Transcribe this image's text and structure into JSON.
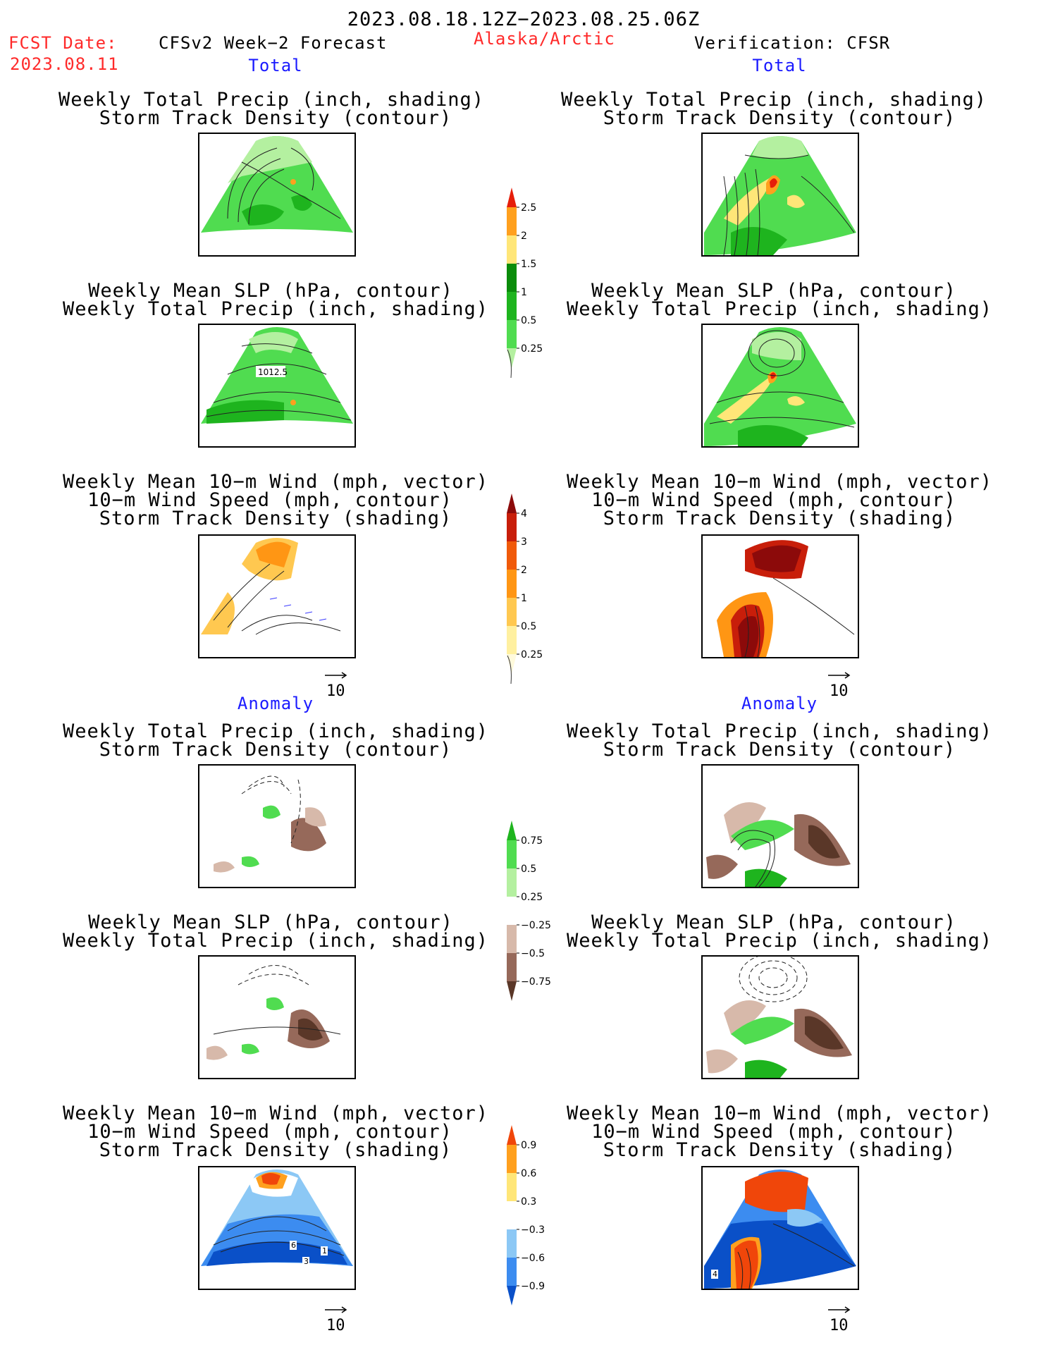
{
  "header": {
    "date_range": "2023.08.18.12Z−2023.08.25.06Z",
    "fcst_label": "FCST Date:",
    "fcst_date": "2023.08.11",
    "model": "CFSv2 Week−2 Forecast",
    "region": "Alaska/Arctic",
    "verification": "Verification: CFSR"
  },
  "sections": {
    "total": "Total",
    "anomaly": "Anomaly"
  },
  "titles": {
    "precip_storm": [
      "Weekly Total Precip (inch, shading)",
      "Storm Track Density (contour)"
    ],
    "slp_precip": [
      "Weekly Mean SLP (hPa, contour)",
      "Weekly Total Precip (inch, shading)"
    ],
    "wind_storm": [
      "Weekly Mean 10−m Wind (mph, vector)",
      "10−m Wind Speed (mph, contour)",
      "Storm Track Density (shading)"
    ]
  },
  "contour_label": "1012.5",
  "vector_scale": "10",
  "anomaly_contour_labels": [
    "6",
    "1",
    "3",
    "4"
  ],
  "colorbars": {
    "precip_total": {
      "colors": [
        "#b4f0a0",
        "#50dc50",
        "#1eb41e",
        "#0a8c0a",
        "#ffe678",
        "#ffa01e",
        "#e61e0a"
      ],
      "labels": [
        "0.25",
        "0.5",
        "1",
        "1.5",
        "2",
        "2.5"
      ]
    },
    "storm_total": {
      "colors": [
        "#fffadc",
        "#fff0a0",
        "#ffc850",
        "#ff9614",
        "#f05a0a",
        "#c81e0a",
        "#8c0a0a"
      ],
      "labels": [
        "0.25",
        "0.5",
        "1",
        "2",
        "3",
        "4"
      ]
    },
    "precip_anom": {
      "colors": [
        "#5a3728",
        "#96695a",
        "#d7b9aa",
        "#ffffff",
        "#b4f0a0",
        "#50dc50",
        "#1eb41e"
      ],
      "labels": [
        "−0.75",
        "−0.5",
        "−0.25",
        "0.25",
        "0.5",
        "0.75"
      ]
    },
    "storm_anom": {
      "colors": [
        "#0a50c8",
        "#3c8cf0",
        "#8cc8f5",
        "#ffffff",
        "#ffe678",
        "#ffa01e",
        "#f0460a"
      ],
      "labels": [
        "−0.9",
        "−0.6",
        "−0.3",
        "0.3",
        "0.6",
        "0.9"
      ]
    }
  }
}
